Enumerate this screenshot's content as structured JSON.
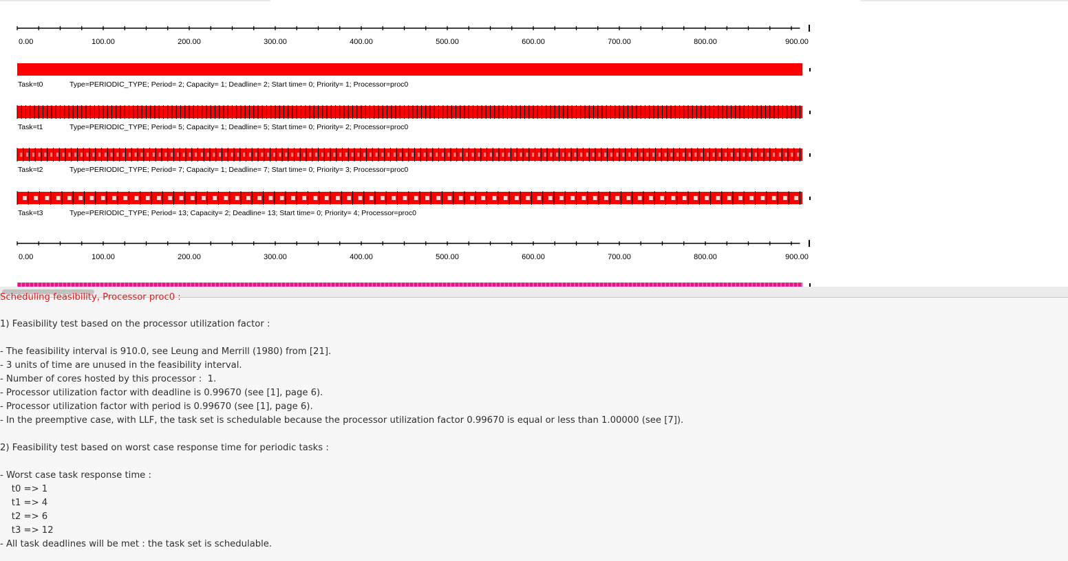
{
  "colors": {
    "exec_bar": "#ff0000",
    "exec_bar_processor": "#e5168a",
    "axis": "#000000",
    "label_text": "#000000",
    "result_text": "#2f2f2f",
    "result_heading": "#e01a1a"
  },
  "timeline": {
    "axis_ticks": [
      "0.00",
      "100.00",
      "200.00",
      "300.00",
      "400.00",
      "500.00",
      "600.00",
      "700.00",
      "800.00",
      "900.00"
    ],
    "axis_range": [
      0,
      910
    ],
    "tasks": [
      {
        "name": "Task=t0",
        "details": "Type=PERIODIC_TYPE; Period= 2; Capacity= 1; Deadline= 2; Start time= 0; Priority= 1; Processor=proc0",
        "period": 2
      },
      {
        "name": "Task=t1",
        "details": "Type=PERIODIC_TYPE; Period= 5; Capacity= 1; Deadline= 5; Start time= 0; Priority= 2; Processor=proc0",
        "period": 5
      },
      {
        "name": "Task=t2",
        "details": "Type=PERIODIC_TYPE; Period= 7; Capacity= 1; Deadline= 7; Start time= 0; Priority= 3; Processor=proc0",
        "period": 7
      },
      {
        "name": "Task=t3",
        "details": "Type=PERIODIC_TYPE; Period= 13; Capacity= 2; Deadline= 13; Start time= 0; Priority= 4; Processor=proc0",
        "period": 13
      }
    ]
  },
  "results": {
    "clipped_heading": "Scheduling feasibility, Processor proc0 :",
    "lines": [
      "1) Feasibility test based on the processor utilization factor :",
      "",
      "- The feasibility interval is 910.0, see Leung and Merrill (1980) from [21].",
      "- 3 units of time are unused in the feasibility interval.",
      "- Number of cores hosted by this processor :  1.",
      "- Processor utilization factor with deadline is 0.99670 (see [1], page 6).",
      "- Processor utilization factor with period is 0.99670 (see [1], page 6).",
      "- In the preemptive case, with LLF, the task set is schedulable because the processor utilization factor 0.99670 is equal or less than 1.00000 (see [7]).",
      "",
      "2) Feasibility test based on worst case response time for periodic tasks :",
      "",
      "- Worst case task response time :",
      "    t0 => 1",
      "    t1 => 4",
      "    t2 => 6",
      "    t3 => 12",
      "- All task deadlines will be met : the task set is schedulable."
    ]
  }
}
